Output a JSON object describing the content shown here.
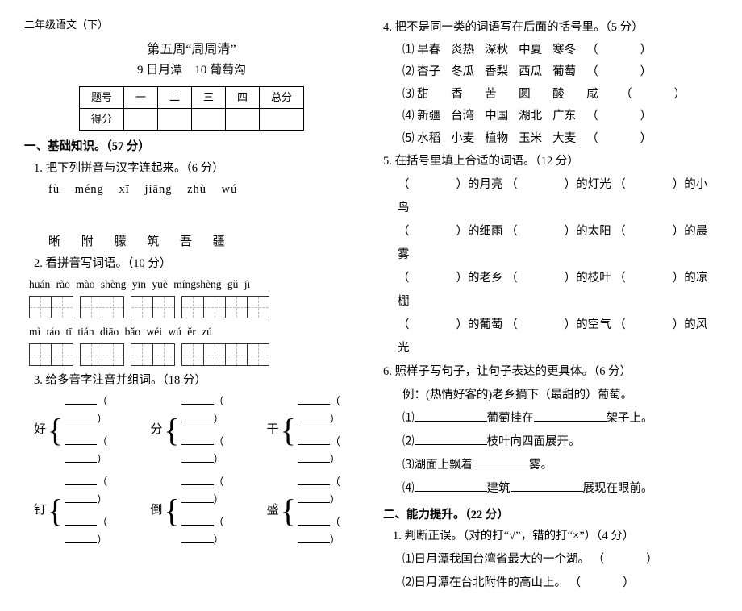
{
  "header": {
    "grade": "二年级语文（下）"
  },
  "title": {
    "main": "第五周“周周清”",
    "sub_a": "9 日月潭",
    "sub_b": "10 葡萄沟"
  },
  "score_table": {
    "row1": [
      "题号",
      "一",
      "二",
      "三",
      "四",
      "总分"
    ],
    "row2_label": "得分"
  },
  "sec1": {
    "head": "一、基础知识。（57 分）",
    "q1": {
      "label": "1. 把下列拼音与汉字连起来。（6 分）",
      "pinyin": "fù   méng   xī   jiāng   zhù   wú",
      "hanzi": "晰  附  朦  筑  吾  疆"
    },
    "q2": {
      "label": "2. 看拼音写词语。（10 分）",
      "row1": "huán rào  mào shèng  yīn yuè  míngshèng gǔ jì",
      "row2": "mì táo  tī tián  diāo bǎo  wéi wú ěr zú"
    },
    "q3": {
      "label": "3. 给多音字注音并组词。（18 分）",
      "chars": [
        "好",
        "分",
        "干",
        "钉",
        "倒",
        "盛"
      ]
    }
  },
  "q4": {
    "label": "4. 把不是同一类的词语写在后面的括号里。（5 分）",
    "rows": [
      [
        "⑴",
        "早春",
        "炎热",
        "深秋",
        "中夏",
        "寒冬"
      ],
      [
        "⑵",
        "杏子",
        "冬瓜",
        "香梨",
        "西瓜",
        "葡萄"
      ],
      [
        "⑶",
        "甜",
        "香",
        "苦",
        "圆",
        "酸",
        "咸"
      ],
      [
        "⑷",
        "新疆",
        "台湾",
        "中国",
        "湖北",
        "广东"
      ],
      [
        "⑸",
        "水稻",
        "小麦",
        "植物",
        "玉米",
        "大麦"
      ]
    ]
  },
  "q5": {
    "label": "5. 在括号里填上合适的词语。（12 分）",
    "items": [
      [
        "的月亮",
        "的灯光",
        "的小鸟"
      ],
      [
        "的细雨",
        "的太阳",
        "的晨雾"
      ],
      [
        "的老乡",
        "的枝叶",
        "的凉棚"
      ],
      [
        "的葡萄",
        "的空气",
        "的风光"
      ]
    ]
  },
  "q6": {
    "label": "6. 照样子写句子，让句子表达的更具体。（6 分）",
    "example": "例：(热情好客的)老乡摘下（最甜的）葡萄。",
    "s1a": "⑴",
    "s1b": "葡萄挂在",
    "s1c": "架子上。",
    "s2a": "⑵",
    "s2b": "枝叶向四面展开。",
    "s3a": "⑶湖面上飘着",
    "s3b": "雾。",
    "s4a": "⑷",
    "s4b": "建筑",
    "s4c": "展现在眼前。"
  },
  "sec2": {
    "head": "二、能力提升。（22 分）",
    "q1": {
      "label": "1. 判断正误。（对的打“√”，错的打“×”）（4 分）",
      "i1": "⑴日月潭我国台湾省最大的一个湖。",
      "i2": "⑵日月潭在台北附件的高山上。"
    }
  }
}
